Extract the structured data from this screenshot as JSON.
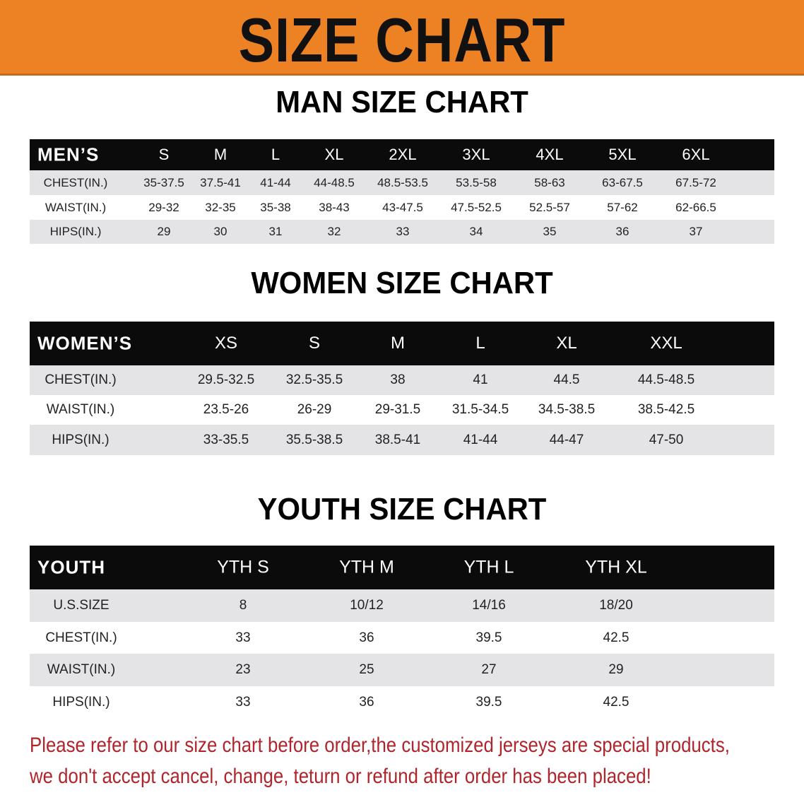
{
  "banner": {
    "title": "SIZE CHART",
    "color": "#ec8224"
  },
  "men": {
    "title": "MAN SIZE CHART",
    "header_label": "MEN’S",
    "sizes": [
      "S",
      "M",
      "L",
      "XL",
      "2XL",
      "3XL",
      "4XL",
      "5XL",
      "6XL"
    ],
    "rows": [
      {
        "label": "CHEST(IN.)",
        "values": [
          "35-37.5",
          "37.5-41",
          "41-44",
          "44-48.5",
          "48.5-53.5",
          "53.5-58",
          "58-63",
          "63-67.5",
          "67.5-72"
        ]
      },
      {
        "label": "WAIST(IN.)",
        "values": [
          "29-32",
          "32-35",
          "35-38",
          "38-43",
          "43-47.5",
          "47.5-52.5",
          "52.5-57",
          "57-62",
          "62-66.5"
        ]
      },
      {
        "label": "HIPS(IN.)",
        "values": [
          "29",
          "30",
          "31",
          "32",
          "33",
          "34",
          "35",
          "36",
          "37"
        ]
      }
    ]
  },
  "women": {
    "title": "WOMEN SIZE CHART",
    "header_label": "WOMEN’S",
    "sizes": [
      "XS",
      "S",
      "M",
      "L",
      "XL",
      "XXL"
    ],
    "rows": [
      {
        "label": "CHEST(IN.)",
        "values": [
          "29.5-32.5",
          "32.5-35.5",
          "38",
          "41",
          "44.5",
          "44.5-48.5"
        ]
      },
      {
        "label": "WAIST(IN.)",
        "values": [
          "23.5-26",
          "26-29",
          "29-31.5",
          "31.5-34.5",
          "34.5-38.5",
          "38.5-42.5"
        ]
      },
      {
        "label": "HIPS(IN.)",
        "values": [
          "33-35.5",
          "35.5-38.5",
          "38.5-41",
          "41-44",
          "44-47",
          "47-50"
        ]
      }
    ]
  },
  "youth": {
    "title": "YOUTH SIZE CHART",
    "header_label": "YOUTH",
    "sizes": [
      "YTH S",
      "YTH M",
      "YTH L",
      "YTH XL"
    ],
    "rows": [
      {
        "label": "U.S.SIZE",
        "values": [
          "8",
          "10/12",
          "14/16",
          "18/20"
        ]
      },
      {
        "label": "CHEST(IN.)",
        "values": [
          "33",
          "36",
          "39.5",
          "42.5"
        ]
      },
      {
        "label": "WAIST(IN.)",
        "values": [
          "23",
          "25",
          "27",
          "29"
        ]
      },
      {
        "label": "HIPS(IN.)",
        "values": [
          "33",
          "36",
          "39.5",
          "42.5"
        ]
      }
    ]
  },
  "notice": {
    "line1": "Please refer to our size chart before order,the customized jerseys are special products,",
    "line2": "we don't accept cancel, change, teturn or refund after order has been placed!",
    "color": "#b0252b"
  }
}
